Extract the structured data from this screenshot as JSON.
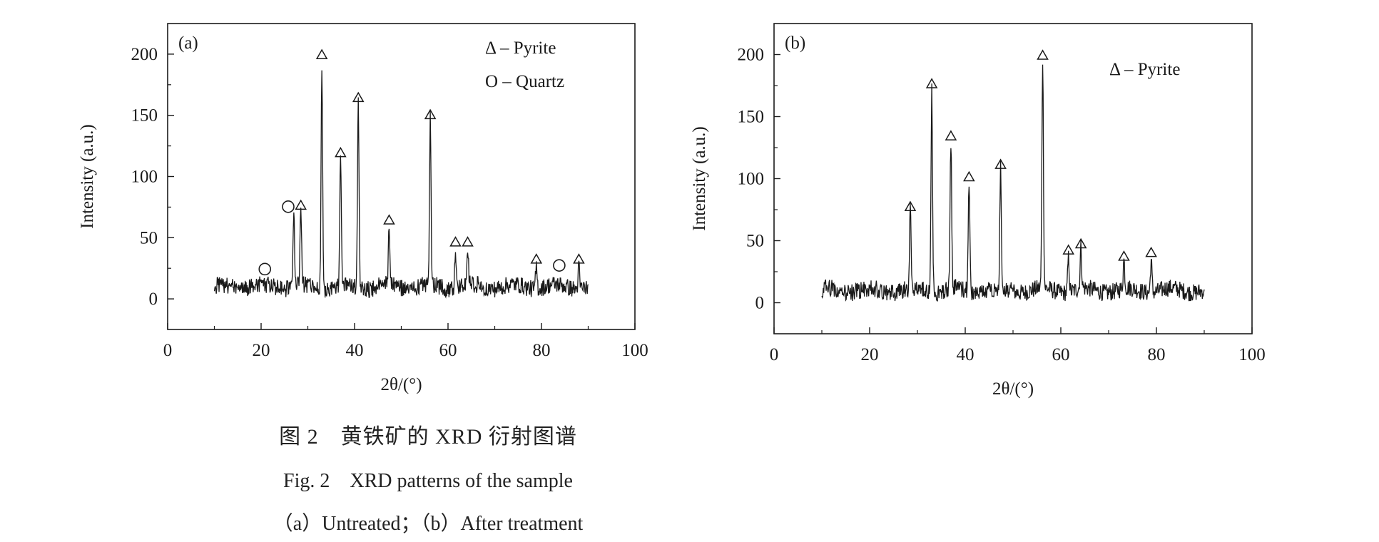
{
  "chart_data": [
    {
      "type": "line",
      "panel_label": "(a)",
      "xlabel": "2θ/(°)",
      "ylabel": "Intensity (a.u.)",
      "xlim": [
        0,
        100
      ],
      "ylim": [
        -25,
        225
      ],
      "xticks": [
        0,
        20,
        40,
        60,
        80,
        100
      ],
      "yticks": [
        0,
        50,
        100,
        150,
        200
      ],
      "x_range": [
        10,
        90
      ],
      "baseline": 10,
      "peaks": [
        {
          "x": 27.0,
          "y": 70
        },
        {
          "x": 28.5,
          "y": 72
        },
        {
          "x": 33.0,
          "y": 195
        },
        {
          "x": 37.0,
          "y": 115
        },
        {
          "x": 40.8,
          "y": 160
        },
        {
          "x": 47.4,
          "y": 60
        },
        {
          "x": 56.2,
          "y": 146
        },
        {
          "x": 61.6,
          "y": 42
        },
        {
          "x": 64.2,
          "y": 42
        },
        {
          "x": 78.9,
          "y": 28
        },
        {
          "x": 88.0,
          "y": 28
        }
      ],
      "markers": [
        {
          "phase": "Quartz",
          "x": 20.8,
          "y": 22
        },
        {
          "phase": "Quartz",
          "x": 25.8,
          "y": 73
        },
        {
          "phase": "Pyrite",
          "x": 28.5,
          "y": 74
        },
        {
          "phase": "Pyrite",
          "x": 33.0,
          "y": 197
        },
        {
          "phase": "Pyrite",
          "x": 37.0,
          "y": 117
        },
        {
          "phase": "Pyrite",
          "x": 40.8,
          "y": 162
        },
        {
          "phase": "Pyrite",
          "x": 47.4,
          "y": 62
        },
        {
          "phase": "Pyrite",
          "x": 56.2,
          "y": 148
        },
        {
          "phase": "Pyrite",
          "x": 61.6,
          "y": 44
        },
        {
          "phase": "Pyrite",
          "x": 64.2,
          "y": 44
        },
        {
          "phase": "Pyrite",
          "x": 78.9,
          "y": 30
        },
        {
          "phase": "Quartz",
          "x": 83.8,
          "y": 25
        },
        {
          "phase": "Pyrite",
          "x": 88.0,
          "y": 30
        }
      ],
      "legend": [
        {
          "symbol": "triangle",
          "label": "Δ – Pyrite"
        },
        {
          "symbol": "circle",
          "label": "O – Quartz"
        }
      ],
      "legend_position": "top-right",
      "grid": false
    },
    {
      "type": "line",
      "panel_label": "(b)",
      "xlabel": "2θ/(°)",
      "ylabel": "Intensity (a.u.)",
      "xlim": [
        0,
        100
      ],
      "ylim": [
        -25,
        225
      ],
      "xticks": [
        0,
        20,
        40,
        60,
        80,
        100
      ],
      "yticks": [
        0,
        50,
        100,
        150,
        200
      ],
      "x_range": [
        10,
        90
      ],
      "baseline": 10,
      "peaks": [
        {
          "x": 28.5,
          "y": 73
        },
        {
          "x": 33.0,
          "y": 172
        },
        {
          "x": 37.0,
          "y": 130
        },
        {
          "x": 40.8,
          "y": 97
        },
        {
          "x": 47.4,
          "y": 107
        },
        {
          "x": 56.2,
          "y": 195
        },
        {
          "x": 61.6,
          "y": 38
        },
        {
          "x": 64.2,
          "y": 43
        },
        {
          "x": 73.2,
          "y": 33
        },
        {
          "x": 78.9,
          "y": 36
        }
      ],
      "markers": [
        {
          "phase": "Pyrite",
          "x": 28.5,
          "y": 75
        },
        {
          "phase": "Pyrite",
          "x": 33.0,
          "y": 174
        },
        {
          "phase": "Pyrite",
          "x": 37.0,
          "y": 132
        },
        {
          "phase": "Pyrite",
          "x": 40.8,
          "y": 99
        },
        {
          "phase": "Pyrite",
          "x": 47.4,
          "y": 109
        },
        {
          "phase": "Pyrite",
          "x": 56.2,
          "y": 197
        },
        {
          "phase": "Pyrite",
          "x": 61.6,
          "y": 40
        },
        {
          "phase": "Pyrite",
          "x": 64.2,
          "y": 45
        },
        {
          "phase": "Pyrite",
          "x": 73.2,
          "y": 35
        },
        {
          "phase": "Pyrite",
          "x": 78.9,
          "y": 38
        }
      ],
      "legend": [
        {
          "symbol": "triangle",
          "label": "Δ – Pyrite"
        }
      ],
      "legend_position": "top-right",
      "grid": false
    }
  ],
  "captions": {
    "zh": "图 2　黄铁矿的 XRD 衍射图谱",
    "en": "Fig. 2　XRD patterns of the sample",
    "sub": "（a）Untreated；（b）After treatment"
  },
  "colors": {
    "trace": "#1a1a1a",
    "axis": "#1a1a1a",
    "background": "#ffffff"
  }
}
